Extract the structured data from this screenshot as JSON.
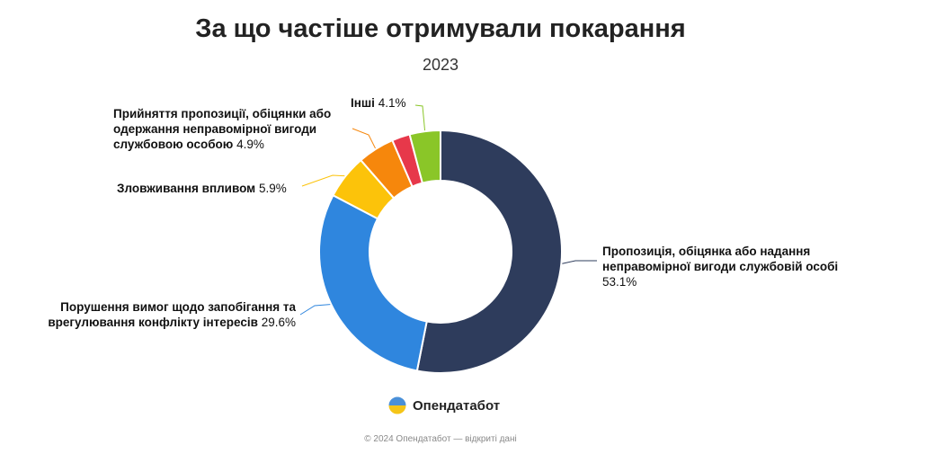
{
  "header": {
    "title": "За що частіше отримували покарання",
    "subtitle": "2023"
  },
  "chart_data": {
    "type": "pie",
    "variant": "donut",
    "title": "За що частіше отримували покарання",
    "subtitle": "2023",
    "unit": "%",
    "slices": [
      {
        "label": "Пропозиція, обіцянка або надання неправомірної вигоди службовій особі",
        "value": 53.1,
        "value_label": "53.1%",
        "color": "#2e3c5c"
      },
      {
        "label": "Порушення вимог щодо запобігання та врегулювання конфлікту інтересів",
        "value": 29.6,
        "value_label": "29.6%",
        "color": "#2f86de"
      },
      {
        "label": "Зловживання впливом",
        "value": 5.9,
        "value_label": "5.9%",
        "color": "#fcc30a"
      },
      {
        "label": "Прийняття пропозиції, обіцянки або одержання неправомірної вигоди службовою особою",
        "value": 4.9,
        "value_label": "4.9%",
        "color": "#f6870c"
      },
      {
        "label": "",
        "value": 2.4,
        "value_label": "",
        "color": "#e7384a"
      },
      {
        "label": "Інші",
        "value": 4.1,
        "value_label": "4.1%",
        "color": "#8ac628"
      }
    ]
  },
  "labels": {
    "l0": {
      "name_line1": "Пропозиція, обіцянка або надання",
      "name_line2": "неправомірної вигоди службовій особі",
      "pct": "53.1%"
    },
    "l1": {
      "name_line1": "Порушення вимог щодо запобігання та",
      "name_line2": "врегулювання конфлікту інтересів",
      "pct": "29.6%"
    },
    "l2": {
      "name": "Зловживання впливом",
      "pct": "5.9%"
    },
    "l3": {
      "name_line1": "Прийняття пропозиції, обіцянки або",
      "name_line2": "одержання неправомірної вигоди",
      "name_line3": "службовою особою",
      "pct": "4.9%"
    },
    "l5": {
      "name": "Інші",
      "pct": "4.1%"
    }
  },
  "brand": {
    "name": "Опендатабот",
    "logo_icon": "opendatabot-logo-icon",
    "colors": {
      "blue": "#4a90d9",
      "yellow": "#f5c518"
    }
  },
  "footer": {
    "text": "© 2024 Опендатабот — відкриті дані"
  }
}
